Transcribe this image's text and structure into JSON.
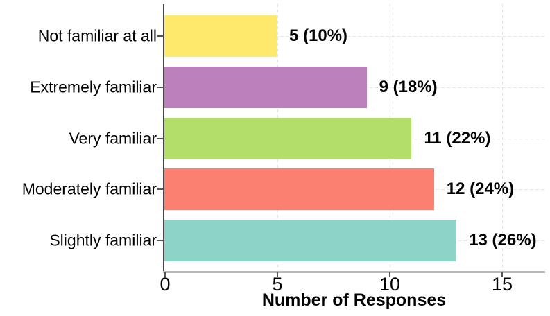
{
  "chart_data": {
    "type": "bar",
    "orientation": "horizontal",
    "title": "",
    "xlabel": "Number of Responses",
    "ylabel": "",
    "categories": [
      "Not familiar at all",
      "Extremely familiar",
      "Very familiar",
      "Moderately familiar",
      "Slightly familiar"
    ],
    "values": [
      5,
      9,
      11,
      12,
      13
    ],
    "percentages": [
      10,
      18,
      22,
      24,
      26
    ],
    "bar_labels": [
      "5 (10%)",
      "9 (18%)",
      "11 (22%)",
      "12 (24%)",
      "13 (26%)"
    ],
    "bar_colors": [
      "#FEE96D",
      "#BC80BD",
      "#B3DE69",
      "#FB8072",
      "#8DD3C7"
    ],
    "x_ticks": [
      "0",
      "5",
      "10",
      "15"
    ],
    "x_tick_values": [
      0,
      5,
      10,
      15
    ],
    "xlim": [
      0,
      17
    ],
    "grid": "dashed-major",
    "legend": "none",
    "colors": {
      "background": "#ffffff",
      "text": "#000000",
      "y_axis_line": "#474747",
      "x_axis_line": "#b9b9b9",
      "tick_mark": "#555555",
      "gridline": "#e4e4e4"
    }
  }
}
